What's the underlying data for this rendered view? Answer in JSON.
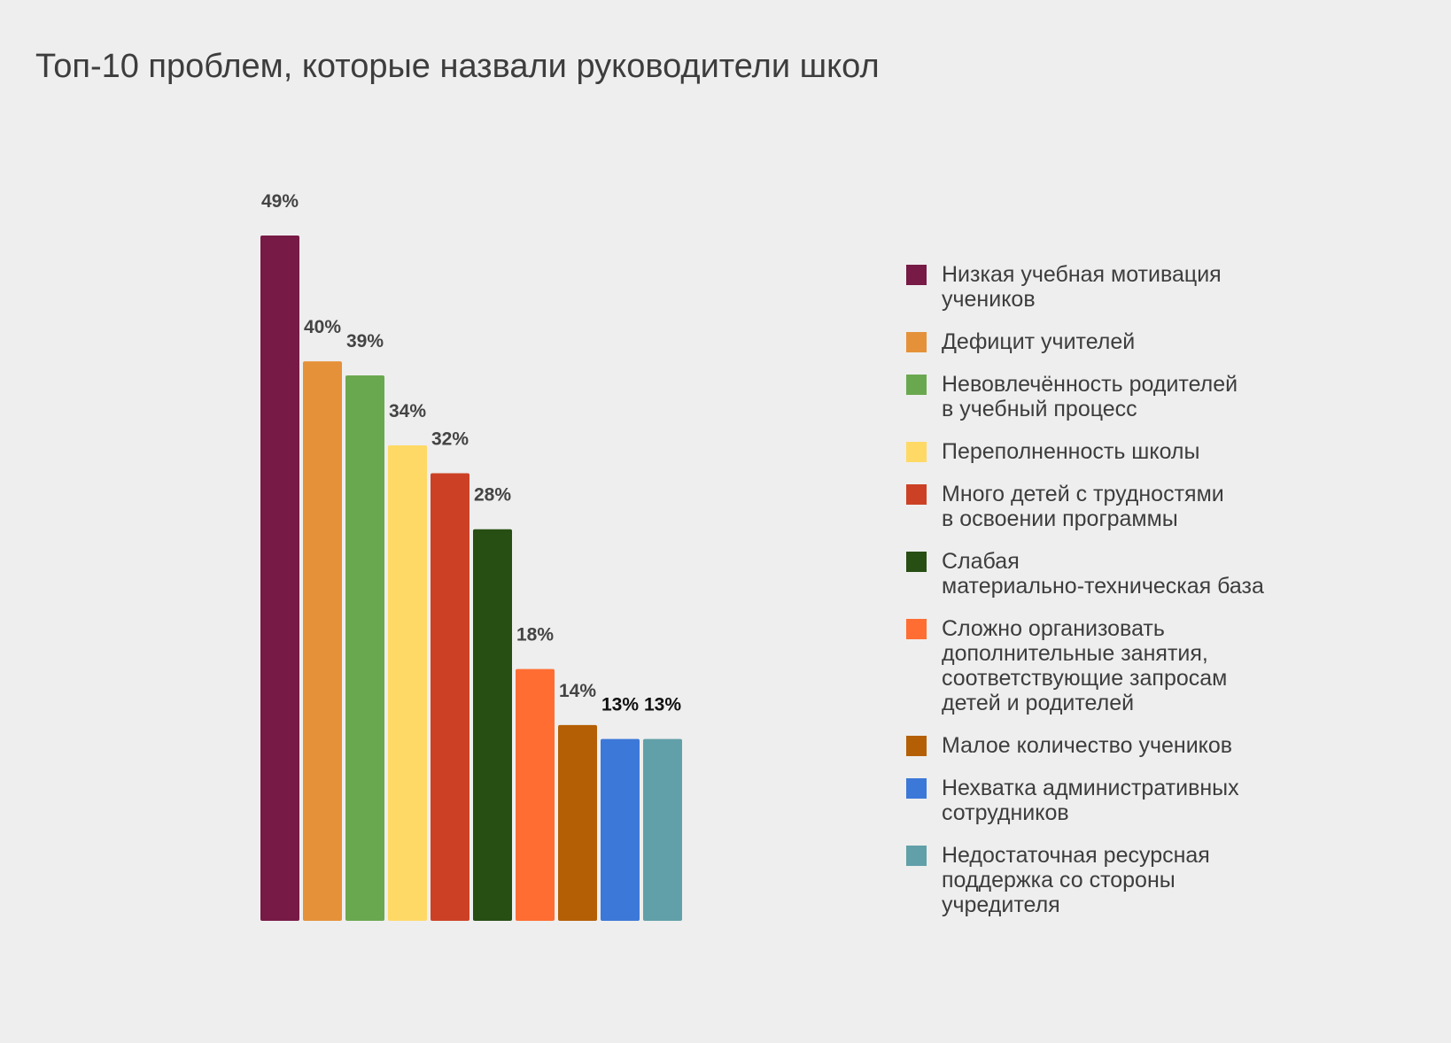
{
  "chart_data": {
    "type": "bar",
    "title": "Топ-10 проблем, которые назвали руководители школ",
    "ylim": [
      0,
      49
    ],
    "grid": false,
    "legend_position": "right",
    "categories": [
      "Низкая учебная мотивация\nучеников",
      "Дефицит учителей",
      "Невовлечённость родителей\nв учебный процесс",
      "Переполненность школы",
      "Много детей с трудностями\nв освоении программы",
      "Слабая\nматериально-техническая база",
      "Сложно организовать\nдополнительные занятия,\nсоответствующие запросам\nдетей и родителей",
      "Малое количество учеников",
      "Нехватка административных\nсотрудников",
      "Недостаточная ресурсная\nподдержка со стороны\nучредителя"
    ],
    "values": [
      49,
      40,
      39,
      34,
      32,
      28,
      18,
      14,
      13,
      13
    ],
    "value_labels": [
      "49%",
      "40%",
      "39%",
      "34%",
      "32%",
      "28%",
      "18%",
      "14%",
      "13%",
      "13%"
    ],
    "colors": [
      "#771a45",
      "#e5913a",
      "#6aa84f",
      "#ffd966",
      "#cc4125",
      "#274e13",
      "#ff6d32",
      "#b45f06",
      "#3c78d8",
      "#61a0a8"
    ],
    "label_colors": [
      "#444444",
      "#444444",
      "#444444",
      "#444444",
      "#444444",
      "#444444",
      "#444444",
      "#444444",
      "#111111",
      "#111111"
    ]
  }
}
